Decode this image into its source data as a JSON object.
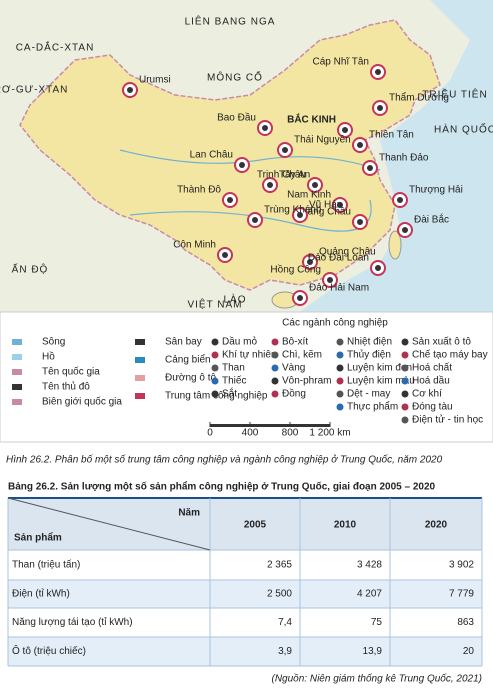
{
  "map": {
    "countries": [
      "LIÊN BANG NGA",
      "CA-DẮC-XTAN",
      "MÔNG CỔ",
      "ẤN ĐỘ",
      "LÀO",
      "VIỆT NAM",
      "CƯ-RƠ-GƯ-XTAN",
      "TRIỀU TIÊN",
      "HÀN QUỐC"
    ],
    "cities": [
      "Urumsi",
      "Cáp Nhĩ Tân",
      "Thẩm Dương",
      "BẮC KINH",
      "Thiên Tân",
      "Bao Đầu",
      "Thái Nguyên",
      "Lan Châu",
      "Tây An",
      "Trịnh Châu",
      "Thanh Đảo",
      "Nam Kinh",
      "Thượng Hải",
      "Hàng Châu",
      "Vũ Hán",
      "Thành Đô",
      "Trùng Khánh",
      "Côn Minh",
      "Quảng Châu",
      "Hồng Công",
      "Đài Bắc",
      "Đảo Đài Loan",
      "Đảo Hải Nam"
    ]
  },
  "legend": {
    "title": "Các ngành công nghiệp",
    "general": [
      "Sông",
      "Hồ",
      "Tên quốc gia",
      "Tên thủ đô",
      "Biên giới quốc gia",
      "Sân bay",
      "Cảng biển",
      "Đường ô tô",
      "Trung tâm công nghiệp"
    ],
    "industries": [
      "Dầu mỏ",
      "Khí tự nhiên",
      "Than",
      "Thiếc",
      "Sắt",
      "Bô-xít",
      "Chì, kẽm",
      "Vàng",
      "Vôn-phram",
      "Đồng",
      "Nhiệt điện",
      "Thủy điện",
      "Luyện kim đen",
      "Luyện kim màu",
      "Dệt - may",
      "Thực phẩm",
      "Sản xuất ô tô",
      "Chế tạo máy bay",
      "Hoá chất",
      "Hoá dầu",
      "Cơ khí",
      "Đóng tàu",
      "Điện tử - tin học"
    ],
    "scale": [
      "0",
      "400",
      "800",
      "1 200 km"
    ]
  },
  "caption": "Hình 26.2. Phân bố một số trung tâm công nghiệp và ngành công nghiệp ở Trung Quốc, năm 2020",
  "table": {
    "title": "Bảng 26.2. Sản lượng một số sản phẩm công nghiệp ở Trung Quốc, giai đoạn 2005 – 2020",
    "corner_top": "Năm",
    "corner_bottom": "Sản phẩm",
    "years": [
      "2005",
      "2010",
      "2020"
    ],
    "rows": [
      [
        "Than (triệu tấn)",
        "2 365",
        "3 428",
        "3 902"
      ],
      [
        "Điện (tỉ kWh)",
        "2 500",
        "4 207",
        "7 779"
      ],
      [
        "Năng lượng tái tạo (tỉ kWh)",
        "7,4",
        "75",
        "863"
      ],
      [
        "Ô tô (triệu chiếc)",
        "3,9",
        "13,9",
        "20"
      ]
    ]
  },
  "source": "(Nguồn: Niên giám thống kê Trung Quốc, 2021)"
}
